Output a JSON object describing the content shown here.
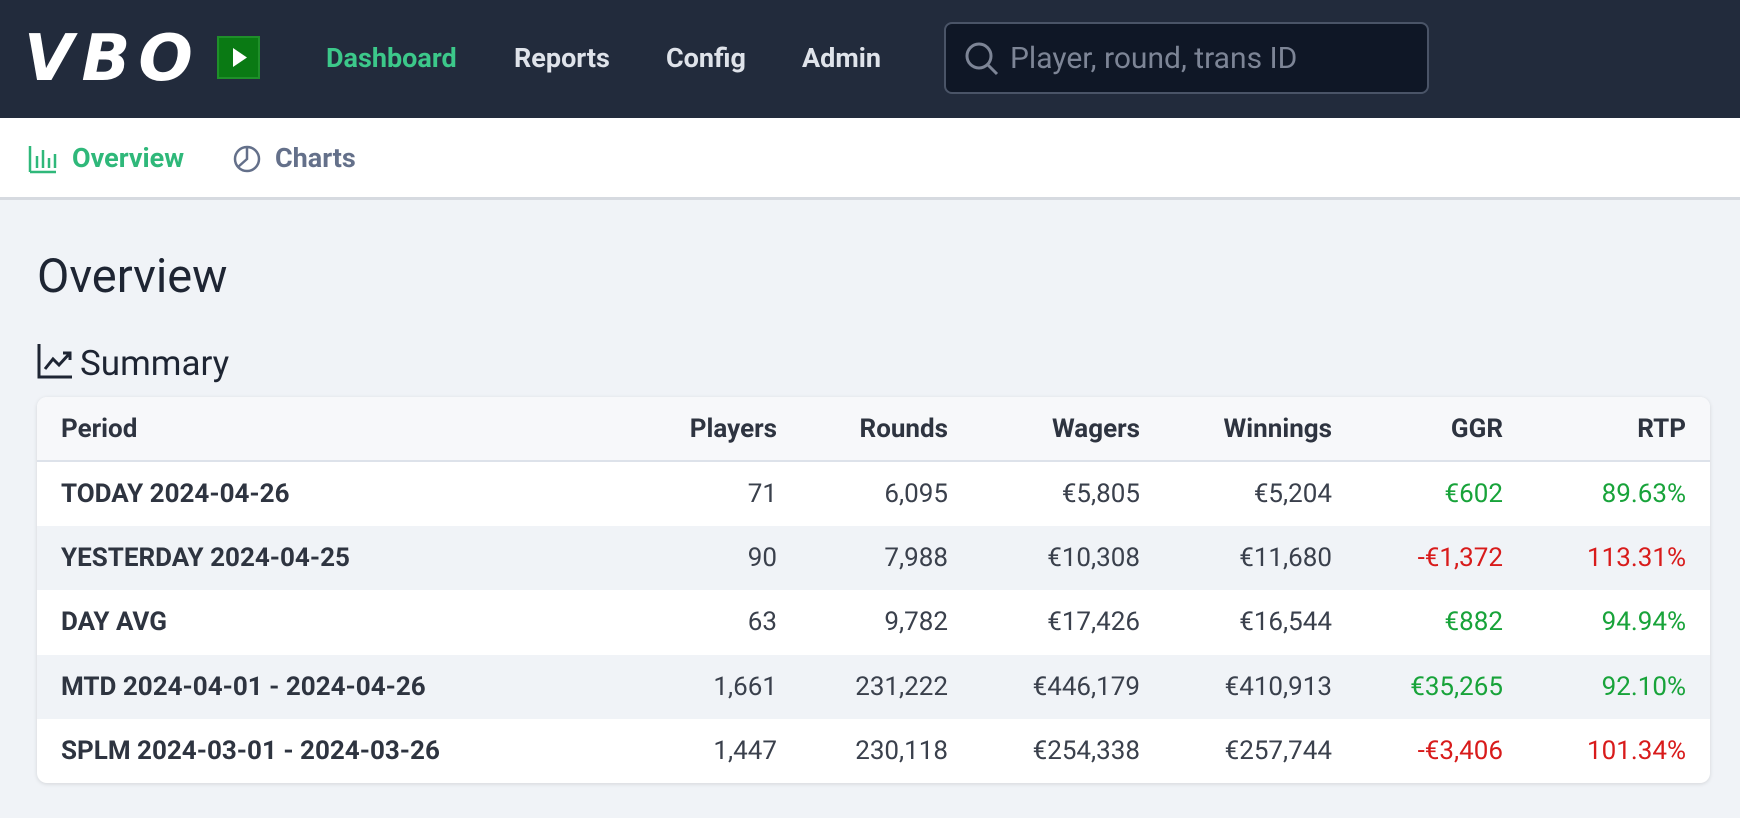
{
  "header": {
    "logo": "VBO",
    "nav": [
      "Dashboard",
      "Reports",
      "Config",
      "Admin"
    ],
    "search_placeholder": "Player, round, trans ID"
  },
  "subnav": [
    "Overview",
    "Charts"
  ],
  "page_title": "Overview",
  "section_title": "Summary",
  "table": {
    "columns": [
      "Period",
      "Players",
      "Rounds",
      "Wagers",
      "Winnings",
      "GGR",
      "RTP"
    ],
    "rows": [
      [
        "TODAY 2024-04-26",
        "71",
        "6,095",
        "€5,805",
        "€5,204",
        "€602",
        "89.63%"
      ],
      [
        "YESTERDAY 2024-04-25",
        "90",
        "7,988",
        "€10,308",
        "€11,680",
        "-€1,372",
        "113.31%"
      ],
      [
        "DAY AVG",
        "63",
        "9,782",
        "€17,426",
        "€16,544",
        "€882",
        "94.94%"
      ],
      [
        "MTD 2024-04-01 - 2024-04-26",
        "1,661",
        "231,222",
        "€446,179",
        "€410,913",
        "€35,265",
        "92.10%"
      ],
      [
        "SPLM 2024-03-01 - 2024-03-26",
        "1,447",
        "230,118",
        "€254,338",
        "€257,744",
        "-€3,406",
        "101.34%"
      ]
    ]
  }
}
